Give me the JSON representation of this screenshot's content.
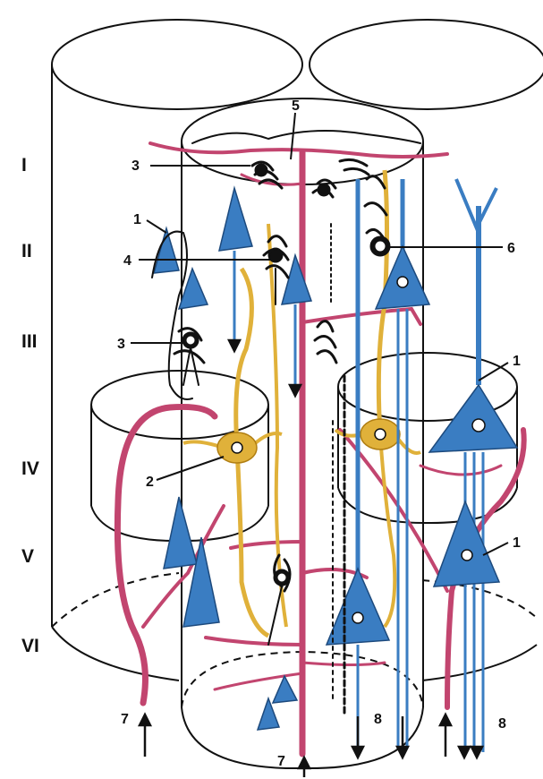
{
  "layers": [
    "I",
    "II",
    "III",
    "IV",
    "V",
    "VI"
  ],
  "labels": {
    "l1a": "1",
    "l1b": "1",
    "l1c": "1",
    "l2": "2",
    "l3a": "3",
    "l3b": "3",
    "l4": "4",
    "l5": "5",
    "l6": "6",
    "l7a": "7",
    "l7b": "7",
    "l8a": "8",
    "l8b": "8"
  },
  "colors": {
    "outline": "#111111",
    "vessel": "#c2456f",
    "blue": "#3a7dc2",
    "gold": "#e0b13a",
    "black": "#111111"
  }
}
